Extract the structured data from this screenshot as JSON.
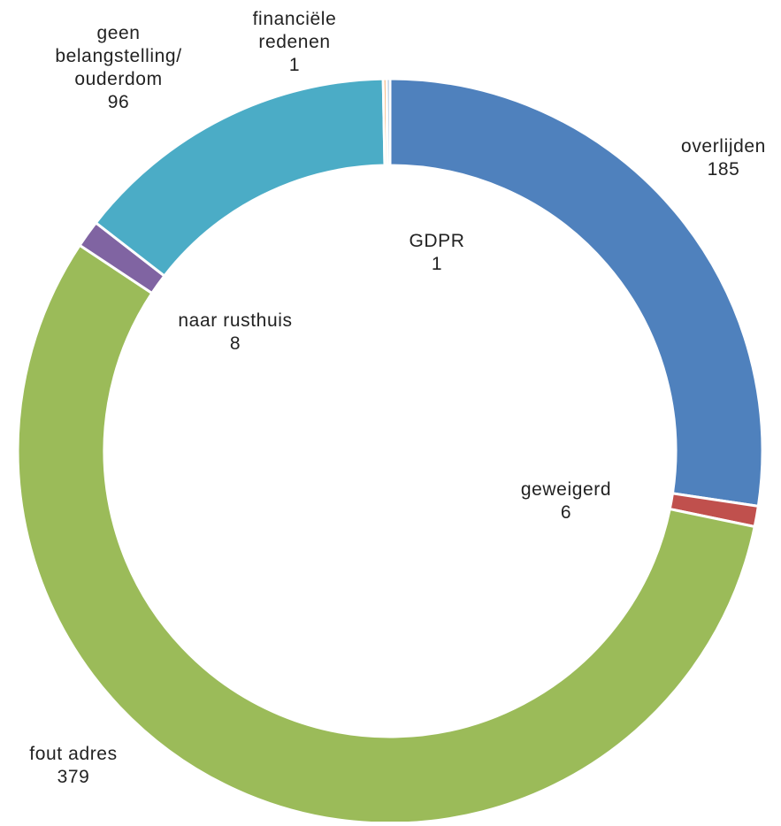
{
  "chart_data": {
    "type": "pie",
    "variant": "donut",
    "title": "",
    "categories": [
      "overlijden",
      "geweigerd",
      "fout adres",
      "naar rusthuis",
      "geen belangstelling/ ouderdom",
      "financiële redenen",
      "GDPR"
    ],
    "values": [
      185,
      6,
      379,
      8,
      96,
      1,
      1
    ],
    "label_lines": [
      [
        "overlijden",
        "185"
      ],
      [
        "geweigerd",
        "6"
      ],
      [
        "fout adres",
        "379"
      ],
      [
        "naar rusthuis",
        "8"
      ],
      [
        "geen",
        "belangstelling/",
        "ouderdom",
        "96"
      ],
      [
        "financiële",
        "redenen",
        "1"
      ],
      [
        "GDPR",
        "1"
      ]
    ],
    "colors": [
      "#4f81bd",
      "#c0504d",
      "#9bbb59",
      "#8064a2",
      "#4bacc6",
      "#f79646",
      "#95b3d7"
    ],
    "start": "12 o'clock",
    "direction": "clockwise",
    "legend": "none",
    "data_labels": "category name and value"
  }
}
